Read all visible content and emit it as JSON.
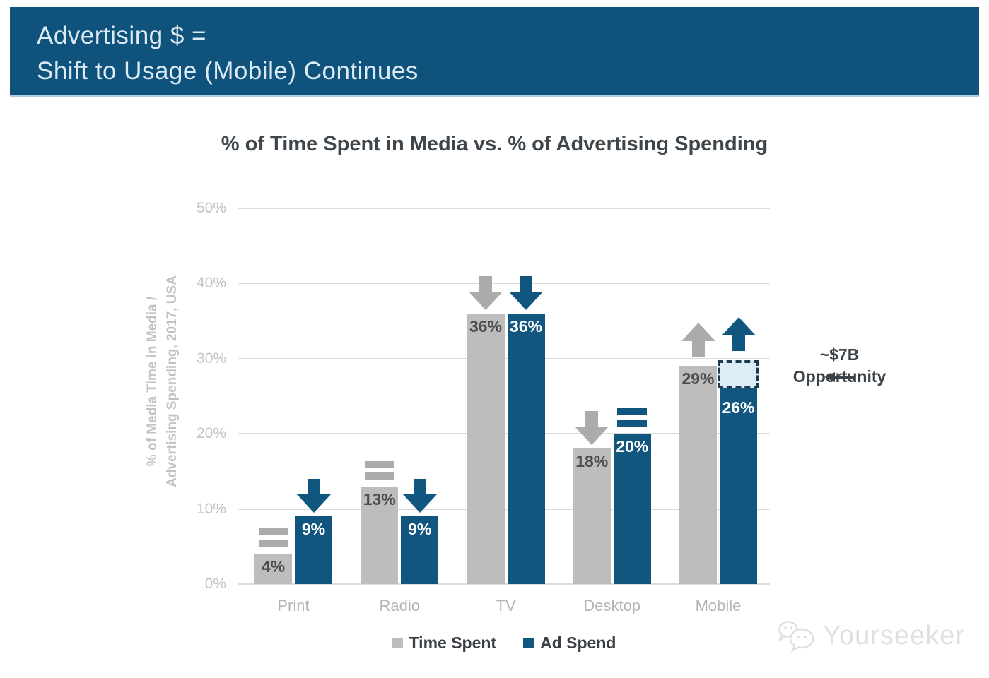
{
  "header": {
    "title_line1": "Advertising $ =",
    "title_line2": "Shift to Usage (Mobile) Continues"
  },
  "chart_data": {
    "type": "bar",
    "title": "% of Time Spent in Media vs. % of Advertising Spending",
    "ylabel_line1": "% of Media Time in Media /",
    "ylabel_line2": "Advertising Spending, 2017, USA",
    "categories": [
      "Print",
      "Radio",
      "TV",
      "Desktop",
      "Mobile"
    ],
    "series": [
      {
        "name": "Time Spent",
        "color": "#BDBDBD",
        "values": [
          4,
          13,
          36,
          18,
          29
        ],
        "labels": [
          "4%",
          "13%",
          "36%",
          "18%",
          "29%"
        ],
        "trends": [
          "flat",
          "flat",
          "down",
          "down",
          "up"
        ]
      },
      {
        "name": "Ad Spend",
        "color": "#11567F",
        "values": [
          9,
          9,
          36,
          20,
          26
        ],
        "labels": [
          "9%",
          "9%",
          "36%",
          "20%",
          "26%"
        ],
        "trends": [
          "down",
          "down",
          "down",
          "flat",
          "up"
        ]
      }
    ],
    "yticks": [
      "0%",
      "10%",
      "20%",
      "30%",
      "40%",
      "50%"
    ],
    "ylim": [
      0,
      50
    ],
    "grid": true,
    "legend_position": "bottom",
    "annotation": {
      "line1": "~$7B",
      "line2": "Opportunity",
      "target_category": "Mobile",
      "target_series": "Ad Spend",
      "box_from": 26,
      "box_to": 29
    }
  },
  "watermark": {
    "text": "Yourseeker",
    "icon": "chat-bubbles-icon"
  },
  "colors": {
    "header_bg": "#0F527C",
    "header_text": "#DCEAF4",
    "bar_gray": "#BDBDBD",
    "bar_blue": "#11567F",
    "icon_gray": "#ABABAB",
    "gridline": "#DCDCDC",
    "tick_text": "#C3C3C3",
    "title_text": "#3F464B",
    "value_on_gray": "#4D4D4D",
    "value_on_blue": "#FFFFFF",
    "opportunity_fill": "#DCEDF8",
    "opportunity_border": "#1D3A52",
    "annotation_text": "#3C4348"
  }
}
